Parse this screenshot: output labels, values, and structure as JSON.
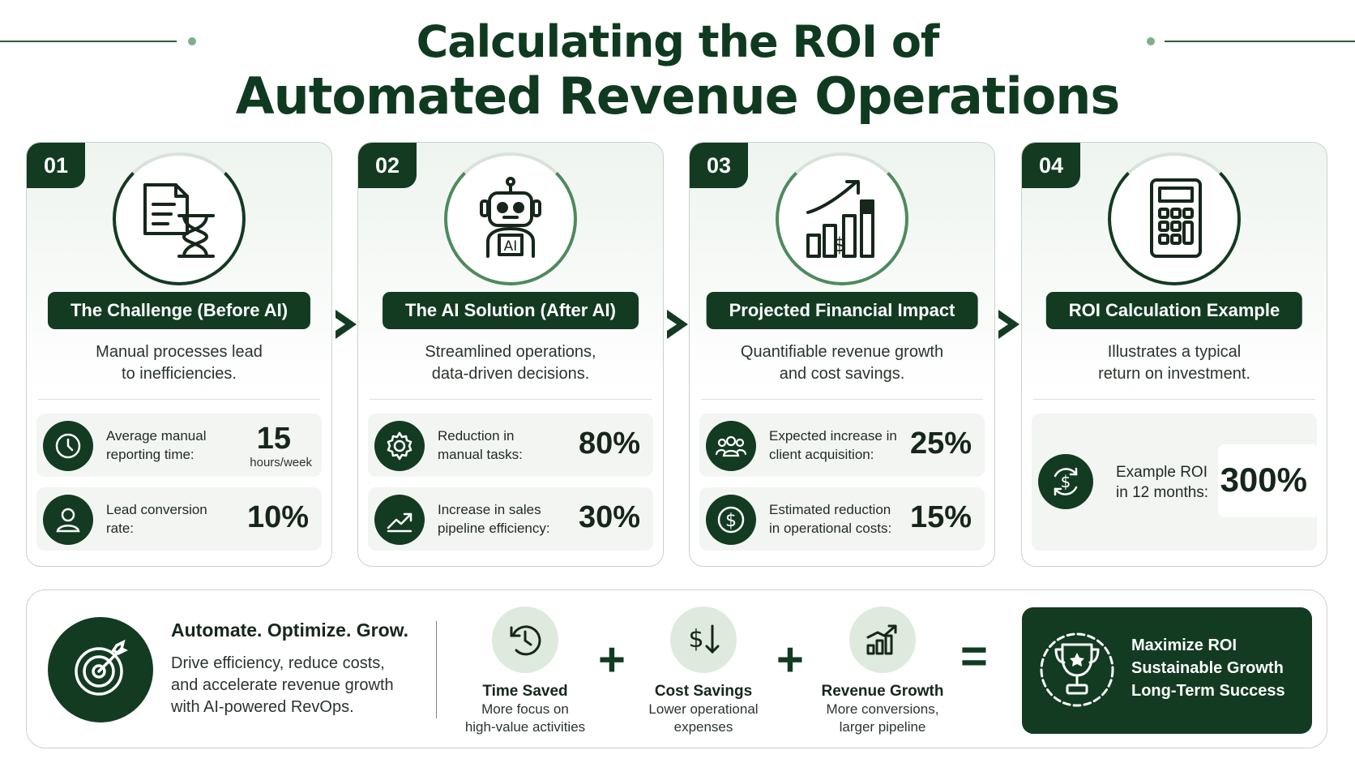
{
  "header": {
    "title_line1": "Calculating the ROI of",
    "title_line2": "Automated Revenue Operations"
  },
  "colors": {
    "dark_green": "#123b22",
    "accent_green": "#4e8a5c",
    "light_green": "#deeade"
  },
  "cards": [
    {
      "number": "01",
      "icon": "document-hourglass-icon",
      "title": "The Challenge (Before AI)",
      "desc_line1": "Manual processes lead",
      "desc_line2": "to inefficiencies.",
      "stats": [
        {
          "icon": "clock-icon",
          "label_line1": "Average manual",
          "label_line2": "reporting time:",
          "value": "15",
          "unit": "hours/week"
        },
        {
          "icon": "user-icon",
          "label_line1": "Lead conversion",
          "label_line2": "rate:",
          "value": "10%"
        }
      ]
    },
    {
      "number": "02",
      "icon": "robot-icon",
      "icon_text": "AI",
      "title": "The AI Solution (After AI)",
      "desc_line1": "Streamlined operations,",
      "desc_line2": "data-driven decisions.",
      "stats": [
        {
          "icon": "gear-icon",
          "label_line1": "Reduction in",
          "label_line2": "manual tasks:",
          "value": "80%"
        },
        {
          "icon": "trend-up-icon",
          "label_line1": "Increase in sales",
          "label_line2": "pipeline efficiency:",
          "value": "30%"
        }
      ]
    },
    {
      "number": "03",
      "icon": "growth-chart-icon",
      "title": "Projected Financial Impact",
      "desc_line1": "Quantifiable revenue growth",
      "desc_line2": "and cost savings.",
      "stats": [
        {
          "icon": "group-icon",
          "label_line1": "Expected increase in",
          "label_line2": "client acquisition:",
          "value": "25%"
        },
        {
          "icon": "dollar-icon",
          "label_line1": "Estimated reduction",
          "label_line2": "in operational costs:",
          "value": "15%"
        }
      ]
    },
    {
      "number": "04",
      "icon": "calculator-icon",
      "title": "ROI Calculation Example",
      "desc_line1": "Illustrates a typical",
      "desc_line2": "return on investment.",
      "big_stat": {
        "icon": "dollar-cycle-icon",
        "label_line1": "Example ROI",
        "label_line2": "in 12 months:",
        "value": "300%"
      }
    }
  ],
  "bottom": {
    "tagline_title": "Automate. Optimize. Grow.",
    "tagline_line1": "Drive efficiency, reduce costs,",
    "tagline_line2": "and accelerate revenue growth",
    "tagline_line3": "with AI-powered RevOps.",
    "features": [
      {
        "icon": "clock-cycle-icon",
        "title": "Time Saved",
        "desc_line1": "More focus on",
        "desc_line2": "high-value activities"
      },
      {
        "icon": "dollar-down-icon",
        "title": "Cost Savings",
        "desc_line1": "Lower operational",
        "desc_line2": "expenses"
      },
      {
        "icon": "bar-growth-icon",
        "title": "Revenue Growth",
        "desc_line1": "More conversions,",
        "desc_line2": "larger pipeline"
      }
    ],
    "operators": [
      "+",
      "+",
      "="
    ],
    "result_lines": [
      "Maximize ROI",
      "Sustainable Growth",
      "Long-Term Success"
    ]
  }
}
